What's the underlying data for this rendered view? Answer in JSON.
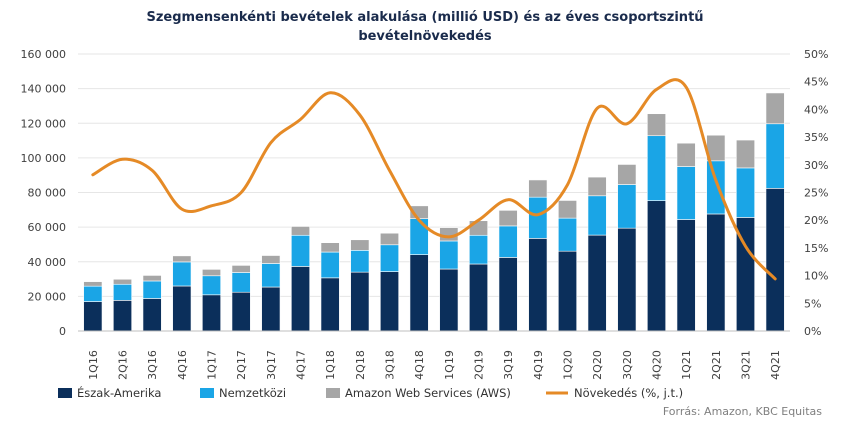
{
  "title_line1": "Szegmensenkénti bevételek alakulása (millió USD) és az éves csoportszintű",
  "title_line2": "bevételnövekedés",
  "source": "Forrás: Amazon, KBC Equitas",
  "colors": {
    "north_america": "#0b2f5b",
    "international": "#1aa5e6",
    "aws": "#a6a6a6",
    "growth": "#e58a26",
    "axis_text": "#404040",
    "grid": "#e6e6e6"
  },
  "chart_data": {
    "type": "bar",
    "stacked": true,
    "categories": [
      "1Q16",
      "2Q16",
      "3Q16",
      "4Q16",
      "1Q17",
      "2Q17",
      "3Q17",
      "4Q17",
      "1Q18",
      "2Q18",
      "3Q18",
      "4Q18",
      "1Q19",
      "2Q19",
      "3Q19",
      "4Q19",
      "1Q20",
      "2Q20",
      "3Q20",
      "4Q20",
      "1Q21",
      "2Q21",
      "3Q21",
      "4Q21"
    ],
    "y_left": {
      "min": 0,
      "max": 160000,
      "ticks": [
        "0",
        "20 000",
        "40 000",
        "60 000",
        "80 000",
        "100 000",
        "120 000",
        "140 000",
        "160 000"
      ]
    },
    "y_right": {
      "min": 0,
      "max": 50,
      "ticks": [
        "0%",
        "5%",
        "10%",
        "15%",
        "20%",
        "25%",
        "30%",
        "35%",
        "40%",
        "45%",
        "50%"
      ]
    },
    "series": [
      {
        "name": "Észak-Amerika",
        "type": "bar",
        "axis": "left",
        "values": [
          17000,
          17700,
          18800,
          26000,
          20900,
          22400,
          25400,
          37300,
          30700,
          34000,
          34300,
          44100,
          35800,
          38700,
          42500,
          53500,
          46100,
          55400,
          59400,
          75300,
          64400,
          67600,
          65600,
          82400
        ]
      },
      {
        "name": "Nemzetközi",
        "type": "bar",
        "axis": "left",
        "values": [
          8900,
          9300,
          10100,
          13900,
          11000,
          11400,
          13600,
          18000,
          14900,
          12600,
          15500,
          20800,
          16200,
          16600,
          18200,
          23800,
          19100,
          22700,
          25200,
          37500,
          30600,
          30700,
          28600,
          37300
        ]
      },
      {
        "name": "Amazon Web Services (AWS)",
        "type": "bar",
        "axis": "left",
        "values": [
          2600,
          2900,
          3200,
          3500,
          3700,
          4100,
          4600,
          5100,
          5400,
          6100,
          6700,
          7400,
          7700,
          8400,
          9000,
          9950,
          10200,
          10800,
          11600,
          12700,
          13500,
          14800,
          16100,
          17800
        ]
      },
      {
        "name": "Növekedés (%, j.t.)",
        "type": "line",
        "axis": "right",
        "values": [
          28.2,
          31.0,
          29.0,
          22.0,
          22.6,
          25.0,
          34.0,
          38.2,
          43.0,
          39.0,
          29.0,
          20.0,
          17.0,
          20.0,
          23.7,
          21.0,
          26.4,
          40.2,
          37.4,
          43.6,
          44.0,
          27.2,
          15.3,
          9.4
        ]
      }
    ]
  }
}
